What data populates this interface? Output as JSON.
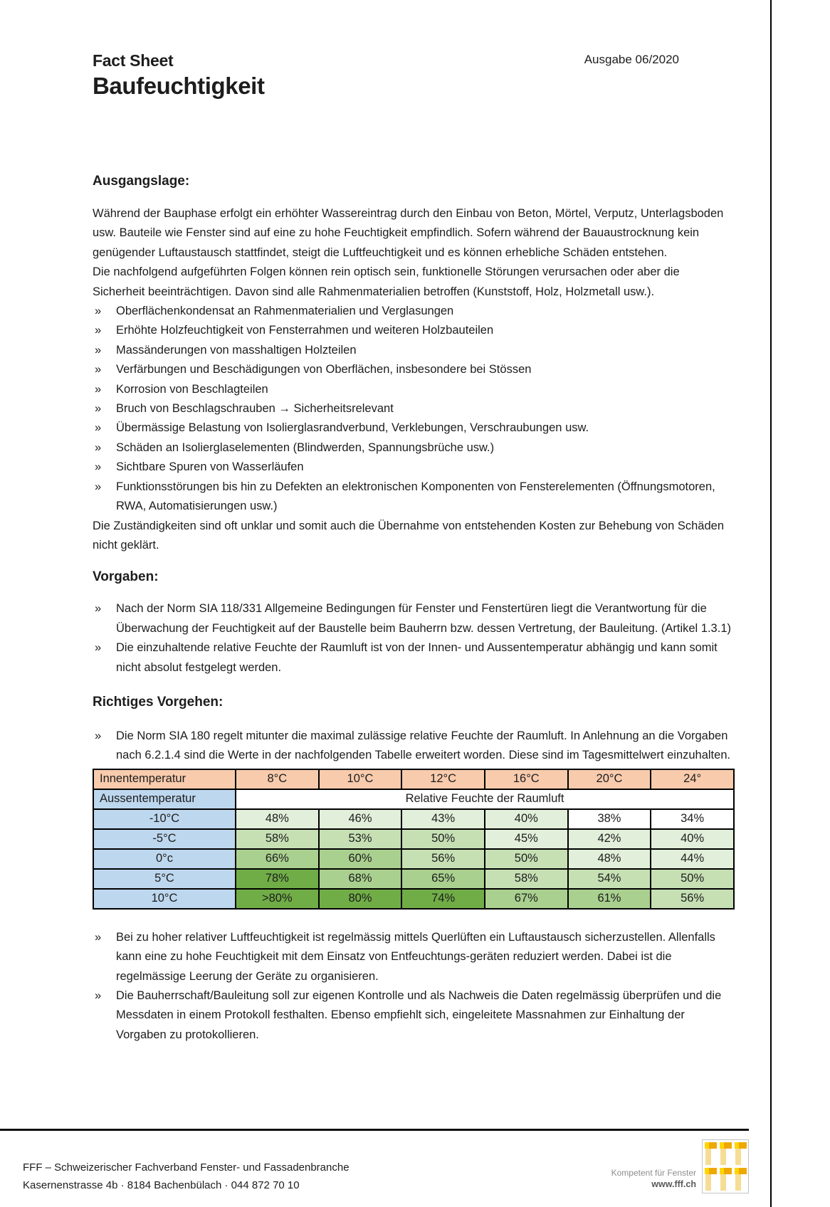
{
  "bullet_marker": "»",
  "header": {
    "doc_type": "Fact Sheet",
    "title": "Baufeuchtigkeit",
    "issue": "Ausgabe 06/2020"
  },
  "sections": {
    "ausgangslage": {
      "heading": "Ausgangslage:",
      "paragraphs": [
        "Während der Bauphase erfolgt ein erhöhter Wassereintrag durch den Einbau von Beton, Mörtel, Verputz, Unterlagsboden usw. Bauteile wie Fenster sind auf eine zu hohe Feuchtigkeit empfindlich. Sofern während der Bauaustrocknung kein genügender Luftaustausch stattfindet, steigt die Luftfeuchtigkeit und es können erhebliche Schäden entstehen.",
        "Die nachfolgend aufgeführten Folgen können rein optisch sein, funktionelle Störungen verursachen oder aber die Sicherheit beeinträchtigen. Davon sind alle Rahmenmaterialien betroffen (Kunststoff, Holz, Holzmetall usw.)."
      ],
      "bullets": [
        "Oberflächenkondensat an Rahmenmaterialien und Verglasungen",
        "Erhöhte Holzfeuchtigkeit von Fensterrahmen und weiteren Holzbauteilen",
        "Massänderungen von masshaltigen Holzteilen",
        "Verfärbungen und Beschädigungen von Oberflächen, insbesondere bei Stössen",
        "Korrosion von Beschlagteilen",
        "Bruch von Beschlagschrauben → Sicherheitsrelevant",
        "Übermässige Belastung von Isolierglasrandverbund, Verklebungen, Verschraubungen usw.",
        "Schäden an Isolierglaselementen (Blindwerden, Spannungsbrüche usw.)",
        "Sichtbare Spuren von Wasserläufen",
        "Funktionsstörungen bis hin zu Defekten an elektronischen Komponenten von Fensterelementen (Öffnungsmotoren, RWA, Automatisierungen usw.)"
      ],
      "closing": "Die Zuständigkeiten sind oft unklar und somit auch die Übernahme von entstehenden Kosten zur Behebung von Schäden nicht geklärt."
    },
    "vorgaben": {
      "heading": "Vorgaben:",
      "bullets": [
        "Nach der Norm SIA 118/331 Allgemeine Bedingungen für Fenster und Fenstertüren liegt die Verantwortung für die Überwachung der Feuchtigkeit auf der Baustelle beim Bauherrn bzw. dessen Vertretung, der Bauleitung. (Artikel 1.3.1)",
        "Die einzuhaltende relative Feuchte der Raumluft ist von der Innen- und Aussentemperatur abhängig und kann somit nicht absolut festgelegt werden."
      ]
    },
    "richtiges_vorgehen": {
      "heading": "Richtiges Vorgehen:",
      "bullets_before_table": [
        "Die Norm SIA 180 regelt mitunter die maximal zulässige relative Feuchte der Raumluft. In Anlehnung an die Vorgaben nach 6.2.1.4 sind die Werte in der nachfolgenden Tabelle erweitert worden. Diese sind im Tagesmittelwert einzuhalten."
      ],
      "bullets_after_table": [
        "Bei zu hoher relativer Luftfeuchtigkeit ist regelmässig mittels Querlüften ein Luftaustausch sicherzustellen. Allenfalls kann eine zu hohe Feuchtigkeit mit dem Einsatz von Entfeuchtungs-geräten reduziert werden. Dabei ist die regelmässige Leerung der Geräte zu organisieren.",
        "Die Bauherrschaft/Bauleitung soll zur eigenen Kontrolle und als Nachweis die Daten regelmässig überprüfen und die Messdaten in einem Protokoll festhalten. Ebenso empfiehlt sich, eingeleitete Massnahmen zur Einhaltung der Vorgaben zu protokollieren."
      ]
    }
  },
  "table": {
    "header": [
      "Innentemperatur",
      "8°C",
      "10°C",
      "12°C",
      "16°C",
      "20°C",
      "24°"
    ],
    "subheader": {
      "label": "Aussentemperatur",
      "merged": "Relative Feuchte der Raumluft"
    },
    "rows": [
      {
        "temp": "-10°C",
        "values": [
          "48%",
          "46%",
          "43%",
          "40%",
          "38%",
          "34%"
        ],
        "levels": [
          1,
          1,
          1,
          1,
          0,
          0
        ]
      },
      {
        "temp": "-5°C",
        "values": [
          "58%",
          "53%",
          "50%",
          "45%",
          "42%",
          "40%"
        ],
        "levels": [
          2,
          2,
          2,
          1,
          1,
          1
        ]
      },
      {
        "temp": "0°c",
        "values": [
          "66%",
          "60%",
          "56%",
          "50%",
          "48%",
          "44%"
        ],
        "levels": [
          3,
          3,
          2,
          2,
          1,
          1
        ]
      },
      {
        "temp": "5°C",
        "values": [
          "78%",
          "68%",
          "65%",
          "58%",
          "54%",
          "50%"
        ],
        "levels": [
          4,
          3,
          3,
          2,
          2,
          2
        ]
      },
      {
        "temp": "10°C",
        "values": [
          ">80%",
          "80%",
          "74%",
          "67%",
          "61%",
          "56%"
        ],
        "levels": [
          4,
          4,
          4,
          3,
          3,
          2
        ]
      }
    ],
    "header_bg": "#F8CBAD",
    "temp_col_bg": "#BDD7EE",
    "level_colors": [
      "#FFFFFF",
      "#E2EFDA",
      "#C6E0B4",
      "#A9D08E",
      "#70AD47"
    ]
  },
  "footer": {
    "org": "FFF – Schweizerischer Fachverband Fenster- und Fassadenbranche",
    "address": "Kasernenstrasse 4b · 8184 Bachenbülach · 044 872 70 10",
    "tagline": "Kompetent für Fenster",
    "url": "www.fff.ch"
  },
  "colors": {
    "logo_bright_gold": "#FFD500",
    "logo_gold": "#EFA800",
    "logo_pale_gold": "#F6DD96"
  }
}
